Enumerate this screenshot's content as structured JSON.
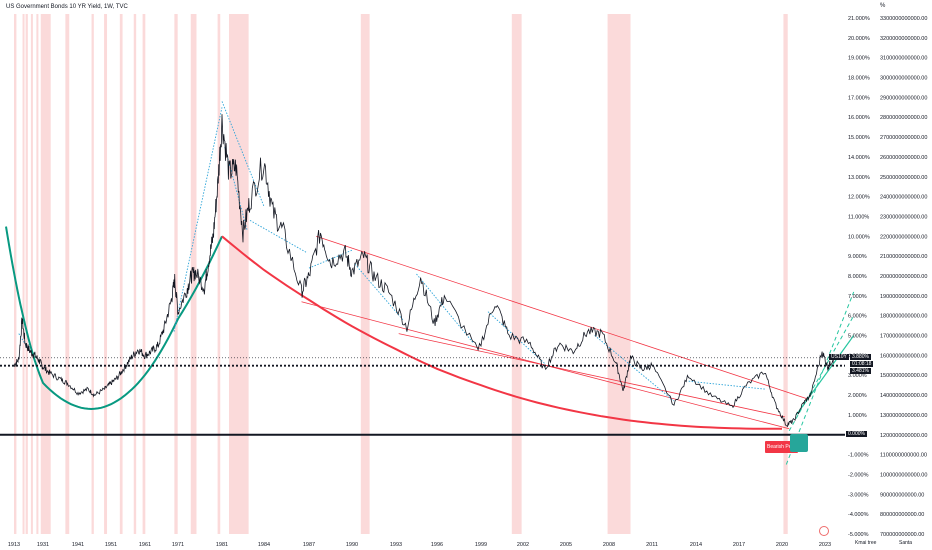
{
  "header": {
    "title": "US Government Bonds 10 YR Yield, 1W, TVC",
    "unit": "%"
  },
  "colors": {
    "price": "#131722",
    "recession": "#f8bcbc",
    "channel": "#f23645",
    "arc": "#f23645",
    "green_curve": "#089981",
    "trend_dotted": "#2ea4d8",
    "teal_dashed": "#26c6a0",
    "badge_red": "#f23645",
    "badge_green": "#26a69a"
  },
  "price_tags": {
    "symbol": "US10Y",
    "last": "3.880%",
    "countdown": "01:08:18",
    "dotted_level": "3.481%",
    "zero": "0.000%"
  },
  "annotation": {
    "label": "Bearish Pe..."
  },
  "footer": {
    "left_text": "Kmai tree",
    "right_text": "Santa"
  },
  "chart_data": {
    "type": "line",
    "title": "US Government Bonds 10 YR Yield, 1W, TVC",
    "xlabel": "",
    "ylabel": "%",
    "x_ticks": [
      "1913",
      "1931",
      "1941",
      "1951",
      "1961",
      "1971",
      "1981",
      "1984",
      "1987",
      "1990",
      "1993",
      "1996",
      "1999",
      "2002",
      "2005",
      "2008",
      "2011",
      "2014",
      "2017",
      "2020",
      "2023"
    ],
    "y_ticks_percent": [
      "21.000%",
      "20.000%",
      "19.000%",
      "18.000%",
      "17.000%",
      "16.000%",
      "15.000%",
      "14.000%",
      "13.000%",
      "12.000%",
      "11.000%",
      "10.000%",
      "9.000%",
      "8.000%",
      "7.000%",
      "6.000%",
      "5.000%",
      "4.000%",
      "3.000%",
      "2.000%",
      "1.000%",
      "0.000%",
      "-1.000%",
      "-2.000%",
      "-3.000%",
      "-4.000%",
      "-5.000%"
    ],
    "y_ticks_secondary": [
      "3300000000000.00",
      "3200000000000.00",
      "3100000000000.00",
      "3000000000000.00",
      "2900000000000.00",
      "2800000000000.00",
      "2700000000000.00",
      "2600000000000.00",
      "2500000000000.00",
      "2400000000000.00",
      "2300000000000.00",
      "2200000000000.00",
      "2100000000000.00",
      "2000000000000.00",
      "1900000000000.00",
      "1800000000000.00",
      "1700000000000.00",
      "1600000000000.00",
      "1500000000000.00",
      "1400000000000.00",
      "1300000000000.00",
      "1200000000000.00",
      "1100000000000.00",
      "1000000000000.00",
      "900000000000.00",
      "800000000000.00",
      "700000000000.00"
    ],
    "ylim": [
      -5,
      21
    ],
    "grid": false,
    "series": [
      {
        "values": [
          {
            "x": 1913,
            "y": 3.5
          },
          {
            "x": 1916,
            "y": 3.8
          },
          {
            "x": 1918,
            "y": 5.8
          },
          {
            "x": 1920,
            "y": 4.6
          },
          {
            "x": 1923,
            "y": 4.2
          },
          {
            "x": 1926,
            "y": 4.0
          },
          {
            "x": 1929,
            "y": 3.7
          },
          {
            "x": 1931,
            "y": 3.4
          },
          {
            "x": 1933,
            "y": 3.1
          },
          {
            "x": 1936,
            "y": 2.8
          },
          {
            "x": 1938,
            "y": 2.6
          },
          {
            "x": 1941,
            "y": 2.1
          },
          {
            "x": 1944,
            "y": 2.3
          },
          {
            "x": 1946,
            "y": 2.0
          },
          {
            "x": 1949,
            "y": 2.3
          },
          {
            "x": 1951,
            "y": 2.6
          },
          {
            "x": 1953,
            "y": 2.9
          },
          {
            "x": 1955,
            "y": 3.4
          },
          {
            "x": 1957,
            "y": 3.9
          },
          {
            "x": 1959,
            "y": 4.3
          },
          {
            "x": 1961,
            "y": 4.0
          },
          {
            "x": 1963,
            "y": 4.2
          },
          {
            "x": 1965,
            "y": 4.5
          },
          {
            "x": 1967,
            "y": 5.5
          },
          {
            "x": 1969,
            "y": 6.8
          },
          {
            "x": 1970,
            "y": 7.8
          },
          {
            "x": 1971,
            "y": 6.2
          },
          {
            "x": 1973,
            "y": 7.3
          },
          {
            "x": 1974,
            "y": 8.0
          },
          {
            "x": 1975,
            "y": 8.2
          },
          {
            "x": 1977,
            "y": 7.4
          },
          {
            "x": 1978,
            "y": 8.8
          },
          {
            "x": 1979,
            "y": 10.0
          },
          {
            "x": 1980,
            "y": 12.5
          },
          {
            "x": 1981,
            "y": 15.8
          },
          {
            "x": 1981.5,
            "y": 13.2
          },
          {
            "x": 1982,
            "y": 13.5
          },
          {
            "x": 1982.5,
            "y": 10.2
          },
          {
            "x": 1983,
            "y": 11.8
          },
          {
            "x": 1984,
            "y": 13.8
          },
          {
            "x": 1984.6,
            "y": 11.2
          },
          {
            "x": 1985.3,
            "y": 10.2
          },
          {
            "x": 1986.5,
            "y": 7.2
          },
          {
            "x": 1987,
            "y": 8.0
          },
          {
            "x": 1987.8,
            "y": 10.2
          },
          {
            "x": 1988.5,
            "y": 8.7
          },
          {
            "x": 1989.5,
            "y": 9.2
          },
          {
            "x": 1990,
            "y": 8.2
          },
          {
            "x": 1990.8,
            "y": 9.0
          },
          {
            "x": 1991.5,
            "y": 8.0
          },
          {
            "x": 1992.5,
            "y": 7.2
          },
          {
            "x": 1993.8,
            "y": 5.4
          },
          {
            "x": 1994.8,
            "y": 8.0
          },
          {
            "x": 1995.8,
            "y": 5.6
          },
          {
            "x": 1996.5,
            "y": 7.0
          },
          {
            "x": 1998.8,
            "y": 4.2
          },
          {
            "x": 2000,
            "y": 6.7
          },
          {
            "x": 2001,
            "y": 5.0
          },
          {
            "x": 2002.5,
            "y": 4.6
          },
          {
            "x": 2003.5,
            "y": 3.3
          },
          {
            "x": 2004.5,
            "y": 4.6
          },
          {
            "x": 2005.5,
            "y": 4.2
          },
          {
            "x": 2006.5,
            "y": 5.2
          },
          {
            "x": 2007.5,
            "y": 5.1
          },
          {
            "x": 2008.5,
            "y": 3.6
          },
          {
            "x": 2009,
            "y": 2.2
          },
          {
            "x": 2009.5,
            "y": 3.9
          },
          {
            "x": 2010.3,
            "y": 3.3
          },
          {
            "x": 2011,
            "y": 3.5
          },
          {
            "x": 2012.5,
            "y": 1.5
          },
          {
            "x": 2013.5,
            "y": 3.0
          },
          {
            "x": 2015,
            "y": 2.0
          },
          {
            "x": 2016.5,
            "y": 1.4
          },
          {
            "x": 2017.5,
            "y": 2.5
          },
          {
            "x": 2018.8,
            "y": 3.2
          },
          {
            "x": 2019.5,
            "y": 1.6
          },
          {
            "x": 2020.3,
            "y": 0.5
          },
          {
            "x": 2020.8,
            "y": 0.7
          },
          {
            "x": 2021.5,
            "y": 1.6
          },
          {
            "x": 2022,
            "y": 2.0
          },
          {
            "x": 2022.8,
            "y": 4.2
          },
          {
            "x": 2023.2,
            "y": 3.4
          },
          {
            "x": 2023.6,
            "y": 3.88
          }
        ]
      }
    ],
    "overlays": {
      "recession_bands": [
        [
          1913,
          1914.5
        ],
        [
          1918.3,
          1919.3
        ],
        [
          1920.2,
          1921.6
        ],
        [
          1923.5,
          1924.6
        ],
        [
          1926.9,
          1927.9
        ],
        [
          1929.6,
          1933.2
        ],
        [
          1937.4,
          1938.5
        ],
        [
          1945.1,
          1945.8
        ],
        [
          1948.9,
          1949.8
        ],
        [
          1953.6,
          1954.4
        ],
        [
          1957.7,
          1958.4
        ],
        [
          1960.3,
          1961.1
        ],
        [
          1969.9,
          1970.9
        ],
        [
          1973.9,
          1975.2
        ],
        [
          1980.0,
          1980.6
        ],
        [
          1981.5,
          1982.9
        ],
        [
          1990.6,
          1991.2
        ],
        [
          2001.2,
          2001.9
        ],
        [
          2007.9,
          2009.5
        ],
        [
          2020.1,
          2020.4
        ]
      ],
      "levels": {
        "last": 3.88,
        "dotted": 3.481,
        "zero": 0
      }
    }
  }
}
